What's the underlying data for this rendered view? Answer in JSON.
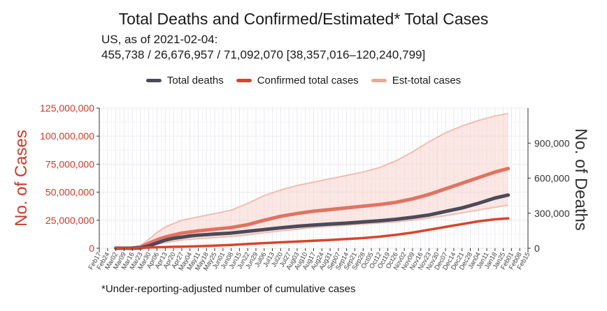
{
  "chart_data": {
    "type": "line",
    "title": "Total Deaths and Confirmed/Estimated* Total Cases",
    "subtitle_line1": "US, as of 2021-02-04:",
    "subtitle_line2": "455,738 / 26,676,957 / 71,092,070 [38,357,016–120,240,799]",
    "caption": "*Under-reporting-adjusted number of cumulative cases",
    "ylabel_left": "No. of Cases",
    "ylabel_right": "No. of Deaths",
    "left_ylim": [
      0,
      125000000
    ],
    "right_ylim": [
      0,
      1200000
    ],
    "left_ticks": [
      0,
      25000000,
      50000000,
      75000000,
      100000000,
      125000000
    ],
    "left_tick_labels": [
      "0",
      "25,000,000",
      "50,000,000",
      "75,000,000",
      "100,000,000",
      "125,000,000"
    ],
    "right_ticks": [
      0,
      300000,
      600000,
      900000
    ],
    "right_tick_labels": [
      "0",
      "300,000",
      "600,000",
      "900,000"
    ],
    "x_tick_labels": [
      "Feb17",
      "Feb24",
      "Mar02",
      "Mar09",
      "Mar16",
      "Mar23",
      "Mar30",
      "Apr06",
      "Apr13",
      "Apr20",
      "Apr27",
      "May04",
      "May11",
      "May18",
      "May25",
      "Jun01",
      "Jun08",
      "Jun15",
      "Jun22",
      "Jun29",
      "Jul06",
      "Jul13",
      "Jul20",
      "Jul27",
      "Aug03",
      "Aug10",
      "Aug17",
      "Aug24",
      "Aug31",
      "Sep07",
      "Sep14",
      "Sep21",
      "Sep28",
      "Oct05",
      "Oct12",
      "Oct19",
      "Oct26",
      "Nov02",
      "Nov09",
      "Nov16",
      "Nov23",
      "Nov30",
      "Dec07",
      "Dec14",
      "Dec21",
      "Dec28",
      "Jan04",
      "Jan11",
      "Jan18",
      "Jan25",
      "Feb01",
      "Feb08",
      "Feb15"
    ],
    "grid": true,
    "legend_position": "top",
    "colors": {
      "deaths": "#4a4a5a",
      "confirmed": "#d9442b",
      "est": "#eba89a",
      "band": "#f7d3cc",
      "left_axis_text": "#cc3a2a",
      "right_axis_text": "#333333"
    },
    "series": [
      {
        "name": "Total deaths",
        "axis": "right",
        "x_weeks_from_Feb17": [
          2,
          3,
          4,
          5,
          6,
          7,
          8,
          9,
          10,
          11,
          12,
          14,
          16,
          18,
          20,
          22,
          24,
          26,
          28,
          30,
          32,
          34,
          36,
          38,
          40,
          42,
          44,
          46,
          48,
          49.6
        ],
        "values": [
          0,
          0,
          100,
          2500,
          20000,
          45000,
          70000,
          85000,
          95000,
          105000,
          112000,
          122000,
          130000,
          145000,
          160000,
          175000,
          188000,
          198000,
          207000,
          215000,
          225000,
          235000,
          248000,
          265000,
          285000,
          315000,
          345000,
          385000,
          430000,
          455738
        ]
      },
      {
        "name": "Confirmed total cases",
        "axis": "left",
        "x_weeks_from_Feb17": [
          2,
          3,
          4,
          5,
          6,
          7,
          8,
          10,
          12,
          14,
          16,
          18,
          20,
          22,
          24,
          26,
          28,
          30,
          32,
          34,
          36,
          38,
          40,
          42,
          44,
          46,
          48,
          49.6
        ],
        "values": [
          0,
          0,
          10000,
          100000,
          700000,
          900000,
          1100000,
          1400000,
          1800000,
          2300000,
          3000000,
          3800000,
          4600000,
          5300000,
          6000000,
          6700000,
          7400000,
          8200000,
          9100000,
          10300000,
          12000000,
          14000000,
          16500000,
          19000000,
          21500000,
          24000000,
          25800000,
          26676957
        ]
      },
      {
        "name": "Est-total cases",
        "axis": "left",
        "x_weeks_from_Feb17": [
          2,
          3,
          4,
          5,
          6,
          7,
          8,
          10,
          12,
          14,
          16,
          18,
          20,
          22,
          24,
          26,
          28,
          30,
          32,
          34,
          36,
          38,
          40,
          42,
          44,
          46,
          48,
          49.6
        ],
        "values": [
          0,
          0,
          200000,
          1200000,
          4500000,
          7500000,
          10000000,
          13500000,
          15500000,
          17000000,
          18500000,
          21000000,
          25000000,
          28500000,
          31000000,
          33000000,
          34500000,
          36000000,
          37500000,
          39000000,
          41000000,
          44000000,
          48000000,
          53000000,
          58000000,
          63000000,
          68000000,
          71092070
        ]
      }
    ],
    "est_band": {
      "x_weeks_from_Feb17": [
        2,
        3,
        4,
        5,
        6,
        7,
        8,
        10,
        12,
        14,
        16,
        18,
        20,
        22,
        24,
        26,
        28,
        30,
        32,
        34,
        36,
        38,
        40,
        42,
        44,
        46,
        48,
        49.6
      ],
      "lower": [
        0,
        0,
        100000,
        600000,
        2000000,
        3500000,
        5000000,
        7200000,
        8500000,
        9500000,
        10500000,
        12000000,
        13800000,
        15500000,
        17000000,
        18500000,
        19500000,
        20500000,
        21500000,
        22500000,
        23500000,
        25000000,
        27000000,
        29000000,
        31500000,
        34000000,
        36500000,
        38357016
      ],
      "upper": [
        0,
        0,
        400000,
        2200000,
        8000000,
        14000000,
        19000000,
        25000000,
        28000000,
        31000000,
        34000000,
        40000000,
        47000000,
        52000000,
        56000000,
        59000000,
        62000000,
        65000000,
        68000000,
        72000000,
        78000000,
        86000000,
        95000000,
        103000000,
        109000000,
        114000000,
        118000000,
        120240799
      ]
    },
    "legend_labels": [
      "Total deaths",
      "Confirmed total cases",
      "Est-total cases"
    ]
  }
}
